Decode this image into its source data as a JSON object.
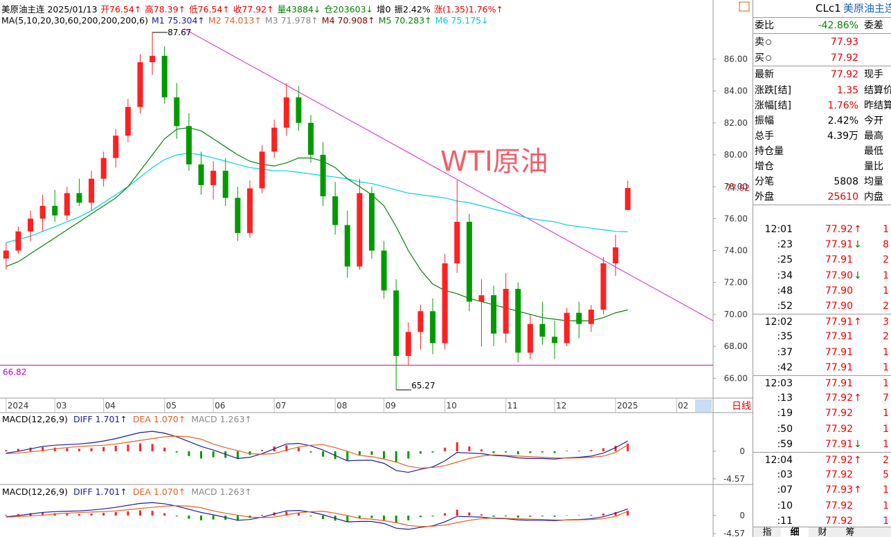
{
  "chart_data": {
    "type": "candlestick",
    "header": {
      "line1": [
        {
          "text": "美原油主连 2025/01/13",
          "color": "#000000"
        },
        {
          "text": "开76.54↑",
          "color": "#e00000"
        },
        {
          "text": "高78.39↑",
          "color": "#e00000"
        },
        {
          "text": "低76.54↑",
          "color": "#e00000"
        },
        {
          "text": "收77.92↑",
          "color": "#e00000"
        },
        {
          "text": "量43884↓",
          "color": "#008000"
        },
        {
          "text": "仓203603↓",
          "color": "#008000"
        },
        {
          "text": "增0",
          "color": "#000000"
        },
        {
          "text": "振2.42%",
          "color": "#000000"
        },
        {
          "text": "涨(1.35)1.76%↑",
          "color": "#e00000"
        }
      ],
      "line2": [
        {
          "text": "MA(5,10,20,30,60,200,200,200,6)",
          "color": "#000000"
        },
        {
          "text": "M1 75.304↑",
          "color": "#1a1a9c"
        },
        {
          "text": "M2 74.013↑",
          "color": "#e06020"
        },
        {
          "text": "M3 71.978↑",
          "color": "#888888"
        },
        {
          "text": "M4 70.908↑",
          "color": "#800000"
        },
        {
          "text": "M5 70.283↑",
          "color": "#008000"
        },
        {
          "text": "M6 75.175↓",
          "color": "#00c8d8"
        }
      ]
    },
    "annotation": "WTI原油",
    "period_label": "日线",
    "up_color": "#ff2020",
    "down_color": "#009a00",
    "ylim": [
      64.8,
      88.4
    ],
    "yticks": [
      {
        "value": 66,
        "label": "66.00"
      },
      {
        "value": 68,
        "label": "68.00"
      },
      {
        "value": 70,
        "label": "70.00"
      },
      {
        "value": 72,
        "label": "72.00"
      },
      {
        "value": 74,
        "label": "74.00"
      },
      {
        "value": 76,
        "label": "76.00"
      },
      {
        "value": 78,
        "label": "78.00"
      },
      {
        "value": 80,
        "label": "80.00"
      },
      {
        "value": 82,
        "label": "82.00"
      },
      {
        "value": 84,
        "label": "84.00"
      },
      {
        "value": 86,
        "label": "86.00"
      }
    ],
    "xlim": [
      -0.5,
      58
    ],
    "xticks": [
      {
        "value": 0,
        "label": "2024"
      },
      {
        "value": 4,
        "label": "03"
      },
      {
        "value": 8,
        "label": "04"
      },
      {
        "value": 13,
        "label": "05"
      },
      {
        "value": 17,
        "label": "06"
      },
      {
        "value": 22,
        "label": "07"
      },
      {
        "value": 27,
        "label": "08"
      },
      {
        "value": 31,
        "label": "09"
      },
      {
        "value": 36,
        "label": "10"
      },
      {
        "value": 41,
        "label": "11"
      },
      {
        "value": 45,
        "label": "12"
      },
      {
        "value": 50,
        "label": "2025"
      },
      {
        "value": 55,
        "label": "02"
      }
    ],
    "candles": [
      [
        73.5,
        74.5,
        72.8,
        74.0
      ],
      [
        74.0,
        75.5,
        73.8,
        75.2
      ],
      [
        75.2,
        76.5,
        74.6,
        76.0
      ],
      [
        76.0,
        77.5,
        75.2,
        76.8
      ],
      [
        76.8,
        77.8,
        75.8,
        76.2
      ],
      [
        76.2,
        78.0,
        75.9,
        77.6
      ],
      [
        77.6,
        78.5,
        76.8,
        77.0
      ],
      [
        77.0,
        79.0,
        76.5,
        78.5
      ],
      [
        78.5,
        80.2,
        78.0,
        79.8
      ],
      [
        79.8,
        81.6,
        79.2,
        81.2
      ],
      [
        81.2,
        83.5,
        80.8,
        83.0
      ],
      [
        83.0,
        86.3,
        82.6,
        85.8
      ],
      [
        85.8,
        87.67,
        85.0,
        86.2
      ],
      [
        86.2,
        86.8,
        83.2,
        83.6
      ],
      [
        83.6,
        84.5,
        81.0,
        81.8
      ],
      [
        81.8,
        82.6,
        79.0,
        79.4
      ],
      [
        79.4,
        80.2,
        77.5,
        78.1
      ],
      [
        78.1,
        79.6,
        77.2,
        79.0
      ],
      [
        79.0,
        79.8,
        76.8,
        77.3
      ],
      [
        77.3,
        78.0,
        74.6,
        75.1
      ],
      [
        75.1,
        78.4,
        74.8,
        77.9
      ],
      [
        77.9,
        80.6,
        77.6,
        80.2
      ],
      [
        80.2,
        82.2,
        79.8,
        81.7
      ],
      [
        81.7,
        84.5,
        81.2,
        83.6
      ],
      [
        83.6,
        84.3,
        81.5,
        82.0
      ],
      [
        82.0,
        82.5,
        79.5,
        80.0
      ],
      [
        80.0,
        80.8,
        76.8,
        77.4
      ],
      [
        77.4,
        78.3,
        75.0,
        75.6
      ],
      [
        75.6,
        76.5,
        72.3,
        73.0
      ],
      [
        73.0,
        78.5,
        72.8,
        77.6
      ],
      [
        77.6,
        78.0,
        73.5,
        74.0
      ],
      [
        74.0,
        74.6,
        71.0,
        71.5
      ],
      [
        71.5,
        72.2,
        65.27,
        67.4
      ],
      [
        67.4,
        69.5,
        66.8,
        68.9
      ],
      [
        68.9,
        70.6,
        67.8,
        70.2
      ],
      [
        70.2,
        71.0,
        67.5,
        68.2
      ],
      [
        68.2,
        73.8,
        67.8,
        73.2
      ],
      [
        73.2,
        78.4,
        72.6,
        75.8
      ],
      [
        75.8,
        76.3,
        70.2,
        70.8
      ],
      [
        70.8,
        72.2,
        68.0,
        71.2
      ],
      [
        71.2,
        71.8,
        68.0,
        68.8
      ],
      [
        68.8,
        72.6,
        68.2,
        71.6
      ],
      [
        71.6,
        72.0,
        67.0,
        67.6
      ],
      [
        67.6,
        70.0,
        67.2,
        69.4
      ],
      [
        69.4,
        70.8,
        68.1,
        68.6
      ],
      [
        68.6,
        69.6,
        67.2,
        68.2
      ],
      [
        68.2,
        70.4,
        68.0,
        70.1
      ],
      [
        70.1,
        70.8,
        68.5,
        69.4
      ],
      [
        69.4,
        70.6,
        68.9,
        70.3
      ],
      [
        70.3,
        73.6,
        70.0,
        73.2
      ],
      [
        73.2,
        75.0,
        72.4,
        74.2
      ],
      [
        76.54,
        78.39,
        76.54,
        77.92
      ]
    ],
    "ma_lines": [
      {
        "color": "#00d0e0",
        "values": [
          74.5,
          74.7,
          74.9,
          75.2,
          75.5,
          75.8,
          76.1,
          76.5,
          77,
          77.5,
          78,
          78.6,
          79.2,
          79.7,
          80,
          80.1,
          80,
          79.8,
          79.6,
          79.4,
          79.2,
          79.1,
          79,
          79,
          78.9,
          78.8,
          78.7,
          78.6,
          78.5,
          78.3,
          78.2,
          78,
          77.8,
          77.6,
          77.5,
          77.4,
          77.3,
          77.1,
          77,
          76.8,
          76.6,
          76.4,
          76.2,
          76,
          75.9,
          75.8,
          75.6,
          75.5,
          75.4,
          75.3,
          75.2,
          75.175
        ]
      },
      {
        "color": "#008000",
        "values": [
          73,
          73.3,
          73.8,
          74.3,
          74.8,
          75.3,
          75.8,
          76.3,
          76.8,
          77.3,
          78,
          79,
          80,
          81,
          81.6,
          81.7,
          81.5,
          81,
          80.5,
          80,
          79.6,
          79.4,
          79.3,
          79.5,
          79.8,
          79.8,
          79.6,
          79.2,
          78.5,
          78,
          77.5,
          76.8,
          75.5,
          74,
          72.8,
          71.9,
          71.5,
          71.3,
          71,
          70.8,
          70.6,
          70.4,
          70.2,
          70,
          69.8,
          69.7,
          69.6,
          69.6,
          69.6,
          69.8,
          70.1,
          70.283
        ]
      }
    ],
    "support_line": 66.82,
    "trend_line": {
      "from": [
        14.6,
        87.9
      ],
      "to": [
        58,
        69.6
      ]
    },
    "macd": {
      "diff_color": "#1a1a9c",
      "dea_color": "#e06020",
      "diff": [
        -0.3,
        0,
        0.4,
        0.8,
        1.0,
        1.1,
        1.2,
        1.4,
        1.7,
        2.1,
        2.6,
        3.1,
        3.3,
        3.0,
        2.4,
        1.6,
        0.8,
        0.2,
        -0.5,
        -1.2,
        -1.0,
        -0.4,
        0.4,
        1.2,
        1.3,
        0.9,
        0.2,
        -0.7,
        -1.6,
        -1.5,
        -1.5,
        -2.0,
        -3.2,
        -3.5,
        -3.0,
        -2.6,
        -1.6,
        -0.2,
        -0.3,
        -0.4,
        -0.7,
        -0.8,
        -1.1,
        -1.2,
        -1.2,
        -1.3,
        -1.1,
        -1.0,
        -0.8,
        -0.3,
        0.6,
        1.701
      ],
      "dea": [
        -0.4,
        -0.3,
        -0.1,
        0.1,
        0.4,
        0.6,
        0.8,
        0.9,
        1.0,
        1.2,
        1.5,
        1.8,
        2.1,
        2.4,
        2.5,
        2.4,
        2.0,
        1.2,
        0.6,
        0.1,
        -0.4,
        -0.5,
        -0.4,
        0.2,
        0.7,
        1.0,
        1.1,
        0.6,
        0.0,
        -0.7,
        -0.9,
        -1.3,
        -1.8,
        -2.5,
        -2.8,
        -2.7,
        -2.4,
        -1.8,
        -1.2,
        -0.8,
        -0.6,
        -0.7,
        -0.8,
        -0.9,
        -1.0,
        -1.1,
        -1.15,
        -1.1,
        -1.0,
        -0.8,
        -0.2,
        1.07
      ],
      "hist": [
        0.2,
        0.4,
        0.6,
        0.7,
        0.6,
        0.5,
        0.4,
        0.5,
        0.7,
        0.9,
        1.1,
        1.3,
        1.2,
        0.6,
        -0.2,
        -0.8,
        -1.2,
        -1.0,
        -1.1,
        -1.3,
        -0.6,
        0.2,
        0.8,
        1.0,
        0.6,
        -0.2,
        -0.9,
        -1.3,
        -1.5,
        -0.6,
        -0.6,
        -1.2,
        -1.8,
        -1.2,
        -0.4,
        -0.2,
        0.6,
        1.5,
        0.8,
        0.3,
        -0.3,
        -0.2,
        -0.5,
        -0.3,
        -0.2,
        -0.3,
        0.1,
        0.1,
        0.2,
        0.5,
        0.9,
        1.263
      ]
    },
    "panels": [
      {
        "label": "MACD(12,26,9)",
        "legend": [
          {
            "text": "DIFF 1.701↑",
            "color": "#1a1a9c"
          },
          {
            "text": "DEA 1.070↑",
            "color": "#e06020"
          },
          {
            "text": "MACD 1.263↑",
            "color": "#888888"
          }
        ],
        "ylim": [
          -5.4,
          6.3
        ],
        "yticks": [
          0,
          -4.57
        ]
      },
      {
        "label": "MACD(12,26,9)",
        "legend": [
          {
            "text": "DIFF 1.701↑",
            "color": "#1a1a9c"
          },
          {
            "text": "DEA 1.070↑",
            "color": "#e06020"
          },
          {
            "text": "MACD 1.263↑",
            "color": "#888888"
          }
        ],
        "ylim": [
          -5.45,
          7.56
        ],
        "yticks": [
          0,
          -4.57
        ]
      }
    ]
  },
  "quote": {
    "symbol": "CLc1",
    "name": "美原油主连",
    "rows": [
      {
        "label": "委比",
        "value": "-42.86%",
        "extra": "委差",
        "color": "#008000"
      },
      {
        "label": "卖",
        "value": "77.93",
        "color": "#e00000"
      },
      {
        "label": "买",
        "value": "77.92",
        "color": "#e00000"
      },
      {
        "label": "最新",
        "value": "77.92",
        "extra": "现手",
        "color": "#e00000"
      },
      {
        "label": "涨跌[结]",
        "value": "1.35",
        "extra": "结算价",
        "color": "#e00000"
      },
      {
        "label": "涨幅[结]",
        "value": "1.76%",
        "extra": "昨结算",
        "color": "#e00000"
      },
      {
        "label": "振幅",
        "value": "2.42%",
        "extra": "今开",
        "color": "#000000"
      },
      {
        "label": "总手",
        "value": "4.39万",
        "extra": "最高",
        "color": "#000000"
      },
      {
        "label": "持仓量",
        "extra": "最低"
      },
      {
        "label": "增仓",
        "extra": "量比"
      },
      {
        "label": "分笔",
        "value": "5808",
        "extra": "均量",
        "color": "#000000"
      },
      {
        "label": "外盘",
        "value": "25610",
        "extra": "内盘",
        "color": "#e00000"
      }
    ],
    "ticks": [
      {
        "time": "12:01",
        "price": "77.92",
        "arrow": "↑",
        "volume": "1"
      },
      {
        "time": ":23",
        "price": "77.91",
        "arrow": "↓",
        "volume": "8"
      },
      {
        "time": ":25",
        "price": "77.91",
        "volume": "2"
      },
      {
        "time": ":34",
        "price": "77.90",
        "arrow": "↓",
        "volume": "1"
      },
      {
        "time": ":48",
        "price": "77.90",
        "volume": "1"
      },
      {
        "time": ":52",
        "price": "77.90",
        "volume": "2"
      },
      {
        "time": "12:02",
        "price": "77.91",
        "arrow": "↑",
        "volume": "3"
      },
      {
        "time": ":35",
        "price": "77.91",
        "volume": "2"
      },
      {
        "time": ":37",
        "price": "77.91",
        "volume": "1"
      },
      {
        "time": ":42",
        "price": "77.91",
        "volume": "1"
      },
      {
        "time": "12:03",
        "price": "77.91",
        "volume": "1"
      },
      {
        "time": ":13",
        "price": "77.92",
        "arrow": "↑",
        "volume": "7"
      },
      {
        "time": ":19",
        "price": "77.92",
        "volume": "1"
      },
      {
        "time": ":50",
        "price": "77.92",
        "volume": "1"
      },
      {
        "time": ":59",
        "price": "77.91",
        "arrow": "↓",
        "volume": "1"
      },
      {
        "time": "12:04",
        "price": "77.92",
        "arrow": "↑",
        "volume": "2"
      },
      {
        "time": ":03",
        "price": "77.92",
        "volume": "5"
      },
      {
        "time": ":07",
        "price": "77.93",
        "arrow": "↑",
        "volume": "1"
      },
      {
        "time": ":10",
        "price": "77.92",
        "volume": "1"
      },
      {
        "time": ":11",
        "price": "77.92",
        "volume": "1"
      }
    ],
    "tabs": [
      "指",
      "细",
      "财",
      "筹"
    ]
  }
}
